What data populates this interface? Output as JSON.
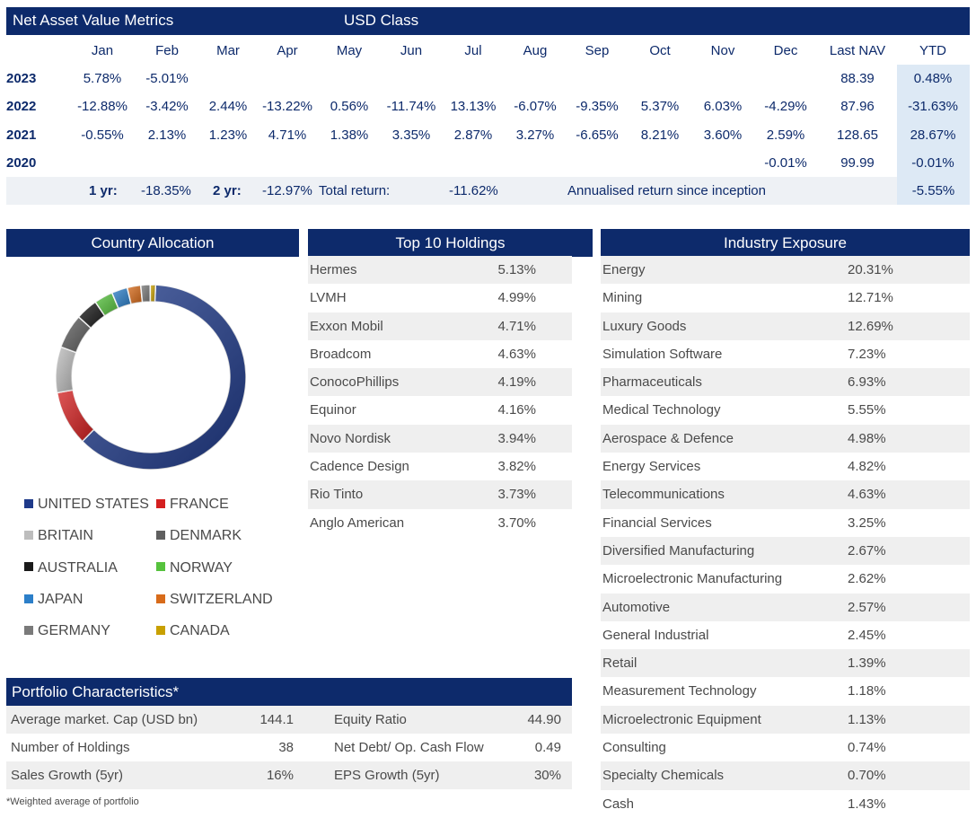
{
  "nav": {
    "title": "Net Asset Value Metrics",
    "class_label": "USD Class",
    "headers": [
      "Jan",
      "Feb",
      "Mar",
      "Apr",
      "May",
      "Jun",
      "Jul",
      "Aug",
      "Sep",
      "Oct",
      "Nov",
      "Dec",
      "Last NAV",
      "YTD"
    ],
    "rows": [
      {
        "year": "2023",
        "values": [
          "5.78%",
          "-5.01%",
          "",
          "",
          "",
          "",
          "",
          "",
          "",
          "",
          "",
          "",
          "88.39",
          "0.48%"
        ]
      },
      {
        "year": "2022",
        "values": [
          "-12.88%",
          "-3.42%",
          "2.44%",
          "-13.22%",
          "0.56%",
          "-11.74%",
          "13.13%",
          "-6.07%",
          "-9.35%",
          "5.37%",
          "6.03%",
          "-4.29%",
          "87.96",
          "-31.63%"
        ]
      },
      {
        "year": "2021",
        "values": [
          "-0.55%",
          "2.13%",
          "1.23%",
          "4.71%",
          "1.38%",
          "3.35%",
          "2.87%",
          "3.27%",
          "-6.65%",
          "8.21%",
          "3.60%",
          "2.59%",
          "128.65",
          "28.67%"
        ]
      },
      {
        "year": "2020",
        "values": [
          "",
          "",
          "",
          "",
          "",
          "",
          "",
          "",
          "",
          "",
          "",
          "-0.01%",
          "99.99",
          "-0.01%"
        ]
      }
    ],
    "summary": {
      "one_yr_label": "1 yr:",
      "one_yr": "-18.35%",
      "two_yr_label": "2 yr:",
      "two_yr": "-12.97%",
      "total_label": "Total return:",
      "total": "-11.62%",
      "annualised_label": "Annualised return since inception",
      "annualised": "-5.55%"
    }
  },
  "country_allocation": {
    "title": "Country Allocation",
    "legend": [
      {
        "label": "UNITED STATES",
        "color": "#1f3a8a"
      },
      {
        "label": "FRANCE",
        "color": "#d42020"
      },
      {
        "label": "BRITAIN",
        "color": "#bdbdbd"
      },
      {
        "label": "DENMARK",
        "color": "#5f5f5f"
      },
      {
        "label": "AUSTRALIA",
        "color": "#1a1a1a"
      },
      {
        "label": "NORWAY",
        "color": "#56c23d"
      },
      {
        "label": "JAPAN",
        "color": "#2c7fc9"
      },
      {
        "label": "SWITZERLAND",
        "color": "#d86b1a"
      },
      {
        "label": "GERMANY",
        "color": "#7a7a7a"
      },
      {
        "label": "CANADA",
        "color": "#c8a000"
      }
    ]
  },
  "chart_data": {
    "type": "pie",
    "categories": [
      "UNITED STATES",
      "FRANCE",
      "BRITAIN",
      "DENMARK",
      "AUSTRALIA",
      "NORWAY",
      "JAPAN",
      "SWITZERLAND",
      "GERMANY",
      "CANADA"
    ],
    "values": [
      62,
      9.5,
      8,
      6,
      3.8,
      3.2,
      2.7,
      2.3,
      1.6,
      0.9
    ]
  },
  "top10": {
    "title": "Top 10 Holdings",
    "items": [
      {
        "name": "Hermes",
        "pct": "5.13%"
      },
      {
        "name": "LVMH",
        "pct": "4.99%"
      },
      {
        "name": "Exxon Mobil",
        "pct": "4.71%"
      },
      {
        "name": "Broadcom",
        "pct": "4.63%"
      },
      {
        "name": "ConocoPhillips",
        "pct": "4.19%"
      },
      {
        "name": "Equinor",
        "pct": "4.16%"
      },
      {
        "name": "Novo Nordisk",
        "pct": "3.94%"
      },
      {
        "name": "Cadence Design",
        "pct": "3.82%"
      },
      {
        "name": "Rio Tinto",
        "pct": "3.73%"
      },
      {
        "name": "Anglo American",
        "pct": "3.70%"
      }
    ]
  },
  "industry": {
    "title": "Industry Exposure",
    "items": [
      {
        "name": "Energy",
        "pct": "20.31%"
      },
      {
        "name": "Mining",
        "pct": "12.71%"
      },
      {
        "name": "Luxury Goods",
        "pct": "12.69%"
      },
      {
        "name": "Simulation Software",
        "pct": "7.23%"
      },
      {
        "name": "Pharmaceuticals",
        "pct": "6.93%"
      },
      {
        "name": "Medical Technology",
        "pct": "5.55%"
      },
      {
        "name": "Aerospace & Defence",
        "pct": "4.98%"
      },
      {
        "name": "Energy Services",
        "pct": "4.82%"
      },
      {
        "name": "Telecommunications",
        "pct": "4.63%"
      },
      {
        "name": "Financial Services",
        "pct": "3.25%"
      },
      {
        "name": "Diversified Manufacturing",
        "pct": "2.67%"
      },
      {
        "name": "Microelectronic Manufacturing",
        "pct": "2.62%"
      },
      {
        "name": "Automotive",
        "pct": "2.57%"
      },
      {
        "name": "General Industrial",
        "pct": "2.45%"
      },
      {
        "name": "Retail",
        "pct": "1.39%"
      },
      {
        "name": "Measurement Technology",
        "pct": "1.18%"
      },
      {
        "name": "Microelectronic Equipment",
        "pct": "1.13%"
      },
      {
        "name": "Consulting",
        "pct": "0.74%"
      },
      {
        "name": "Specialty Chemicals",
        "pct": "0.70%"
      },
      {
        "name": "Cash",
        "pct": "1.43%"
      }
    ]
  },
  "portfolio": {
    "title": "Portfolio Characteristics*",
    "rows": [
      {
        "l1": "Average market. Cap (USD bn)",
        "v1": "144.1",
        "l2": "Equity Ratio",
        "v2": "44.90"
      },
      {
        "l1": "Number of Holdings",
        "v1": "38",
        "l2": "Net Debt/ Op. Cash Flow",
        "v2": "0.49"
      },
      {
        "l1": "Sales Growth (5yr)",
        "v1": "16%",
        "l2": "EPS Growth (5yr)",
        "v2": "30%"
      }
    ],
    "footnote": "*Weighted average of portfolio"
  }
}
